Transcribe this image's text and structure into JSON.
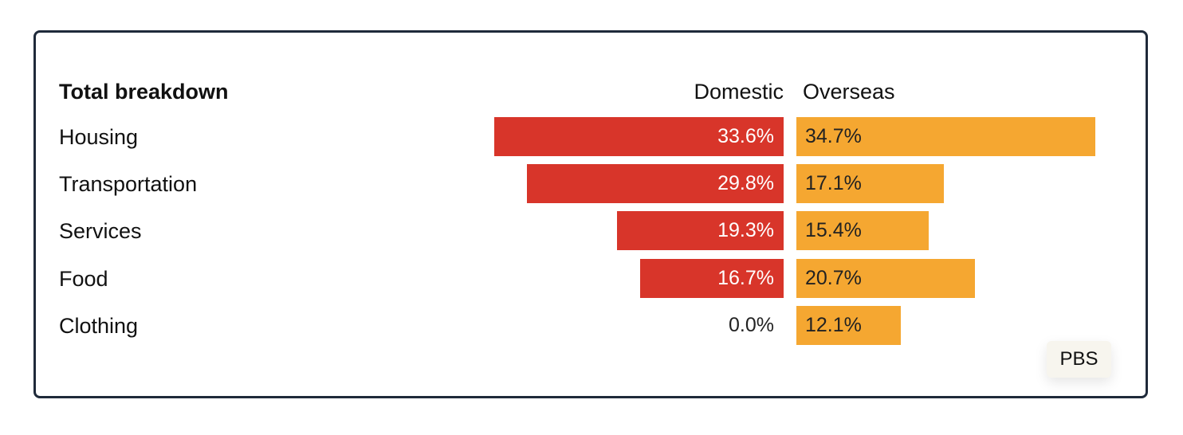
{
  "chart_data": {
    "type": "bar",
    "title": "Total breakdown",
    "categories": [
      "Housing",
      "Transportation",
      "Services",
      "Food",
      "Clothing"
    ],
    "series": [
      {
        "name": "Domestic",
        "values": [
          33.6,
          29.8,
          19.3,
          16.7,
          0.0
        ],
        "labels": [
          "33.6%",
          "29.8%",
          "19.3%",
          "16.7%",
          "0.0%"
        ],
        "color": "#d8352a"
      },
      {
        "name": "Overseas",
        "values": [
          34.7,
          17.1,
          15.4,
          20.7,
          12.1
        ],
        "labels": [
          "34.7%",
          "17.1%",
          "15.4%",
          "20.7%",
          "12.1%"
        ],
        "color": "#f5a731"
      }
    ],
    "unit": "%",
    "grid": false,
    "legend": "column-headers"
  },
  "source": "PBS"
}
